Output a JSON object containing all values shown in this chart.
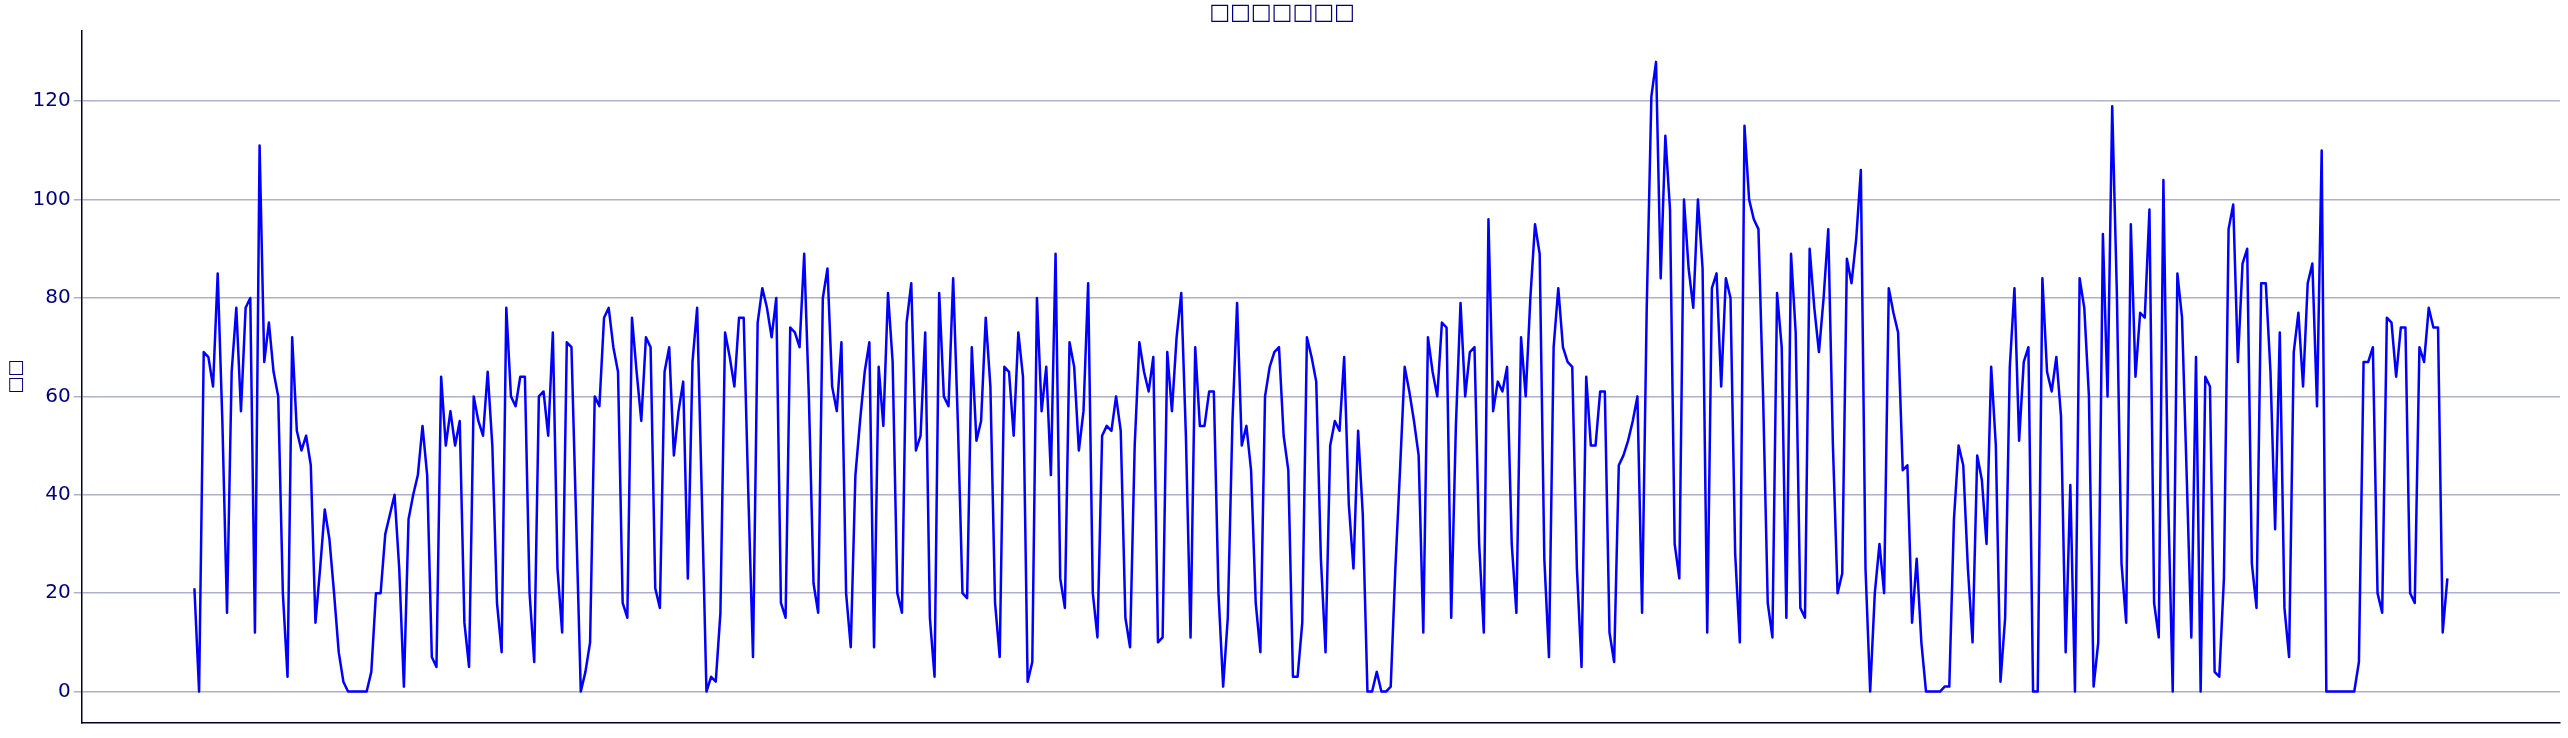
{
  "chart_data": {
    "type": "line",
    "title": "□□□□□□□",
    "ylabel": "□□",
    "categories": [
      null,
      null,
      null,
      null,
      null,
      null,
      null,
      null,
      null,
      null,
      null,
      null,
      null,
      null,
      null,
      null,
      null,
      null,
      null,
      null,
      null,
      null,
      null,
      null,
      null,
      null,
      null,
      null,
      null,
      null,
      null,
      null,
      null,
      null,
      null,
      null,
      null,
      null,
      null,
      null,
      null,
      null,
      null,
      null,
      null,
      null,
      null,
      null,
      null,
      null,
      null,
      null,
      null,
      null,
      null,
      null,
      null,
      null,
      null,
      null,
      null,
      null,
      null,
      null,
      null,
      null,
      null,
      null,
      null,
      null,
      null,
      null,
      null,
      null,
      null,
      null,
      null,
      null,
      null,
      null,
      null,
      null,
      null,
      null,
      null,
      null,
      null,
      null,
      null,
      null,
      null,
      null,
      null,
      null,
      null,
      null,
      null,
      null,
      null,
      null,
      null,
      null,
      null,
      null,
      null,
      null,
      null,
      null,
      null,
      null,
      null,
      null,
      null,
      null,
      null,
      null,
      null,
      null,
      null,
      null,
      null,
      null,
      null,
      null,
      null,
      null,
      null,
      null,
      null,
      null,
      null,
      null,
      null,
      null,
      null,
      null,
      null,
      null,
      null,
      null,
      null,
      null,
      null,
      null,
      null,
      null,
      null,
      null,
      null,
      null,
      null,
      null,
      null,
      null,
      null,
      null,
      null,
      null,
      null,
      null,
      null,
      null,
      null,
      null,
      null,
      null,
      null,
      null,
      null,
      null,
      null,
      null,
      null,
      null,
      null,
      null,
      null,
      null,
      null,
      null,
      null,
      null,
      null,
      null,
      null,
      null,
      null,
      null,
      null,
      null,
      null,
      null,
      null,
      null,
      null,
      null,
      null,
      null,
      null,
      null,
      null,
      null,
      null,
      null,
      null,
      null,
      null,
      null,
      null,
      null,
      null,
      null,
      null,
      null,
      null,
      null,
      null,
      null,
      null,
      null,
      null,
      null,
      null,
      null,
      null,
      null,
      null,
      null,
      null,
      null,
      null,
      null,
      null,
      null,
      null,
      null,
      null,
      null,
      null,
      null,
      null,
      null,
      null,
      null,
      null,
      null,
      null,
      null,
      null,
      null,
      null,
      null,
      null,
      null,
      null,
      null,
      null,
      null,
      null,
      null,
      null,
      null,
      null,
      null,
      null,
      null,
      null,
      null,
      null,
      null,
      null,
      null,
      null,
      null,
      null,
      null,
      null,
      null,
      null,
      null,
      null,
      null,
      null,
      null,
      null,
      null,
      null,
      null,
      null,
      null,
      null,
      null,
      null,
      null,
      null,
      null,
      null,
      null,
      null,
      null,
      null,
      null,
      null,
      null,
      null,
      null,
      null,
      null,
      null,
      null,
      null,
      null,
      null,
      null,
      null,
      null,
      null,
      null,
      null,
      null,
      null,
      null,
      null,
      null,
      null,
      null,
      null,
      null,
      null,
      null,
      null,
      null,
      null,
      null,
      null,
      null,
      null,
      null,
      null,
      null,
      null,
      null,
      null,
      null,
      null,
      null,
      null,
      null,
      null,
      null,
      null,
      null,
      null,
      null,
      null,
      null,
      null,
      null,
      null,
      null,
      null,
      null,
      null,
      null,
      null,
      null,
      null,
      null,
      null,
      null,
      null,
      null,
      null,
      null,
      null,
      null,
      null,
      null,
      null,
      null,
      null,
      null,
      null,
      null,
      null,
      null,
      null,
      null,
      null,
      null,
      null,
      null,
      null,
      null,
      null,
      null,
      null,
      null,
      null,
      null,
      null,
      null,
      null,
      null,
      null,
      null,
      null,
      null,
      null,
      null,
      null,
      null,
      null,
      null,
      null,
      null,
      null,
      null,
      null,
      null,
      null,
      null,
      null,
      null,
      null,
      null,
      null,
      null,
      null,
      null,
      null,
      null,
      null,
      null,
      null,
      null,
      null,
      null,
      null,
      null,
      null,
      null,
      null,
      null,
      null,
      null,
      null,
      null,
      null,
      null,
      null,
      null,
      null,
      null,
      null,
      null,
      null,
      null,
      null,
      null,
      null,
      null,
      null,
      null,
      null,
      null,
      null,
      null,
      null,
      null,
      null,
      null,
      null,
      null,
      null,
      null,
      null,
      null,
      null,
      null,
      null,
      null,
      null,
      null,
      null
    ],
    "series": [
      {
        "color": "#0000ff",
        "values": [
          21,
          0,
          69,
          68,
          62,
          85,
          55,
          16,
          65,
          78,
          57,
          78,
          80,
          12,
          111,
          67,
          75,
          65,
          60,
          20,
          3,
          72,
          53,
          49,
          52,
          46,
          14,
          25,
          37,
          31,
          20,
          8,
          2,
          0,
          0,
          0,
          0,
          0,
          4,
          20,
          20,
          32,
          36,
          40,
          25,
          1,
          35,
          40,
          44,
          54,
          44,
          7,
          5,
          64,
          50,
          57,
          50,
          55,
          14,
          5,
          60,
          55,
          52,
          65,
          50,
          18,
          8,
          78,
          60,
          58,
          64,
          64,
          20,
          6,
          60,
          61,
          52,
          73,
          25,
          12,
          71,
          70,
          35,
          0,
          4,
          10,
          60,
          58,
          76,
          78,
          70,
          65,
          18,
          15,
          76,
          65,
          55,
          72,
          70,
          21,
          17,
          65,
          70,
          48,
          57,
          63,
          23,
          67,
          78,
          40,
          0,
          3,
          2,
          16,
          73,
          68,
          62,
          76,
          76,
          40,
          7,
          75,
          82,
          78,
          72,
          80,
          18,
          15,
          74,
          73,
          70,
          89,
          60,
          22,
          16,
          80,
          86,
          62,
          57,
          71,
          20,
          9,
          44,
          55,
          65,
          71,
          9,
          66,
          54,
          81,
          67,
          20,
          16,
          75,
          83,
          49,
          52,
          73,
          15,
          3,
          81,
          60,
          58,
          84,
          55,
          20,
          19,
          70,
          51,
          55,
          76,
          62,
          18,
          7,
          66,
          65,
          52,
          73,
          64,
          2,
          6,
          80,
          57,
          66,
          44,
          89,
          23,
          17,
          71,
          66,
          49,
          57,
          83,
          20,
          11,
          52,
          54,
          53,
          60,
          53,
          15,
          9,
          50,
          71,
          65,
          61,
          68,
          10,
          11,
          69,
          57,
          72,
          81,
          52,
          11,
          70,
          54,
          54,
          61,
          61,
          20,
          1,
          15,
          55,
          79,
          50,
          54,
          45,
          18,
          8,
          60,
          66,
          69,
          70,
          52,
          45,
          3,
          3,
          14,
          72,
          68,
          63,
          27,
          8,
          50,
          55,
          53,
          68,
          38,
          25,
          53,
          36,
          0,
          0,
          4,
          0,
          0,
          1,
          25,
          45,
          66,
          61,
          55,
          48,
          12,
          72,
          65,
          60,
          75,
          74,
          15,
          54,
          79,
          60,
          69,
          70,
          30,
          12,
          96,
          57,
          63,
          61,
          66,
          30,
          16,
          72,
          60,
          80,
          95,
          89,
          27,
          7,
          70,
          82,
          70,
          67,
          66,
          25,
          5,
          64,
          50,
          50,
          61,
          61,
          12,
          6,
          46,
          48,
          51,
          55,
          60,
          16,
          78,
          121,
          128,
          84,
          113,
          98,
          30,
          23,
          100,
          86,
          78,
          100,
          86,
          12,
          82,
          85,
          62,
          84,
          80,
          28,
          10,
          115,
          100,
          96,
          94,
          60,
          18,
          11,
          81,
          70,
          15,
          89,
          73,
          17,
          15,
          90,
          78,
          69,
          80,
          94,
          50,
          20,
          24,
          88,
          83,
          92,
          106,
          25,
          0,
          20,
          30,
          20,
          82,
          77,
          73,
          45,
          46,
          14,
          27,
          10,
          0,
          0,
          0,
          0,
          1,
          1,
          35,
          50,
          46,
          25,
          10,
          48,
          43,
          30,
          66,
          50,
          2,
          15,
          66,
          82,
          51,
          67,
          70,
          0,
          0,
          84,
          65,
          61,
          68,
          56,
          8,
          42,
          0,
          84,
          78,
          60,
          1,
          10,
          93,
          60,
          119,
          81,
          26,
          14,
          95,
          64,
          77,
          76,
          98,
          18,
          11,
          104,
          40,
          0,
          85,
          76,
          44,
          11,
          68,
          0,
          64,
          62,
          4,
          3,
          23,
          94,
          99,
          67,
          87,
          90,
          26,
          17,
          83,
          83,
          65,
          33,
          73,
          17,
          7,
          69,
          77,
          62,
          83,
          87,
          58,
          110,
          0,
          0,
          0,
          0,
          0,
          0,
          0,
          6,
          67,
          67,
          70,
          20,
          16,
          76,
          75,
          64,
          74,
          74,
          20,
          18,
          70,
          67,
          78,
          74,
          74,
          12,
          23
        ]
      }
    ],
    "ylim": [
      -6.4,
      134.4
    ],
    "yticks": [
      0,
      20,
      40,
      60,
      80,
      100,
      120
    ],
    "grid": "y",
    "tick_labels": "y"
  }
}
